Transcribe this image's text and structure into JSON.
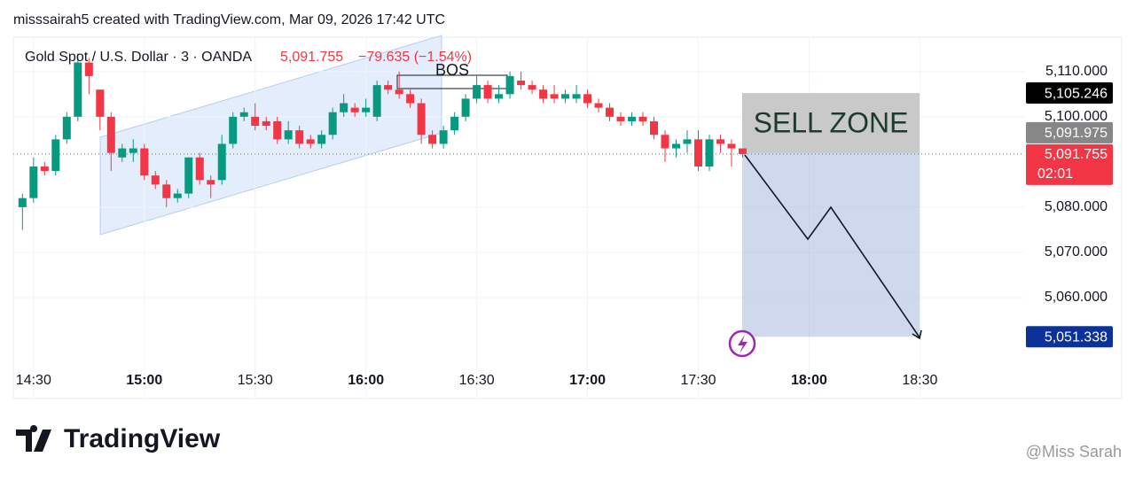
{
  "header": {
    "attribution": "misssairah5 created with TradingView.com, Mar 09, 2026 17:42 UTC"
  },
  "chart_data": {
    "type": "candlestick",
    "title": "Gold Spot / U.S. Dollar · 3 · OANDA",
    "last_price": "5,091.755",
    "change": "−79.635 (−1.54%)",
    "x": [
      "14:27",
      "14:30",
      "14:33",
      "14:36",
      "14:39",
      "14:42",
      "14:45",
      "14:48",
      "14:51",
      "14:54",
      "14:57",
      "15:00",
      "15:03",
      "15:06",
      "15:09",
      "15:12",
      "15:15",
      "15:18",
      "15:21",
      "15:24",
      "15:27",
      "15:30",
      "15:33",
      "15:36",
      "15:39",
      "15:42",
      "15:45",
      "15:48",
      "15:51",
      "15:54",
      "15:57",
      "16:00",
      "16:03",
      "16:06",
      "16:09",
      "16:12",
      "16:15",
      "16:18",
      "16:21",
      "16:24",
      "16:27",
      "16:30",
      "16:33",
      "16:36",
      "16:39",
      "16:42",
      "16:45",
      "16:48",
      "16:51",
      "16:54",
      "16:57",
      "17:00",
      "17:03",
      "17:06",
      "17:09",
      "17:12",
      "17:15",
      "17:18",
      "17:21",
      "17:24",
      "17:27",
      "17:30",
      "17:33",
      "17:36",
      "17:39",
      "17:42"
    ],
    "open": [
      5080,
      5082,
      5089,
      5088,
      5095,
      5100,
      5112,
      5106,
      5100,
      5091,
      5092,
      5093,
      5087,
      5085,
      5082,
      5083,
      5091,
      5086,
      5086,
      5094,
      5100,
      5100,
      5099,
      5099,
      5095,
      5097,
      5095,
      5094,
      5096,
      5101,
      5102,
      5101,
      5100,
      5107,
      5106,
      5105,
      5103,
      5096,
      5094,
      5097,
      5100,
      5104,
      5107,
      5104,
      5105,
      5108,
      5107,
      5106,
      5105,
      5104,
      5104,
      5105,
      5103,
      5102,
      5100,
      5099,
      5100,
      5099,
      5096,
      5093,
      5094,
      5095,
      5089,
      5095,
      5094,
      5093
    ],
    "high": [
      5083,
      5091,
      5090,
      5096,
      5101,
      5114,
      5113,
      5106,
      5101,
      5094,
      5095,
      5094,
      5088,
      5086,
      5084,
      5091,
      5092,
      5087,
      5096,
      5101,
      5102,
      5103,
      5100,
      5100,
      5099,
      5098,
      5096,
      5097,
      5102,
      5105,
      5103,
      5104,
      5108,
      5108,
      5110,
      5106,
      5104,
      5097,
      5098,
      5101,
      5105,
      5109,
      5108,
      5107,
      5110,
      5110,
      5108,
      5107,
      5107,
      5106,
      5107,
      5106,
      5104,
      5103,
      5101,
      5101,
      5101,
      5100,
      5097,
      5095,
      5097,
      5097,
      5096,
      5096,
      5095,
      5093
    ],
    "low": [
      5075,
      5081,
      5087,
      5087,
      5094,
      5099,
      5105,
      5097,
      5088,
      5090,
      5090,
      5086,
      5084,
      5080,
      5081,
      5082,
      5085,
      5082,
      5085,
      5093,
      5099,
      5097,
      5097,
      5094,
      5094,
      5093,
      5093,
      5093,
      5095,
      5100,
      5100,
      5100,
      5099,
      5105,
      5104,
      5102,
      5094,
      5093,
      5093,
      5096,
      5099,
      5103,
      5103,
      5103,
      5104,
      5106,
      5105,
      5103,
      5103,
      5103,
      5103,
      5102,
      5101,
      5099,
      5098,
      5098,
      5098,
      5095,
      5090,
      5091,
      5092,
      5088,
      5088,
      5092,
      5089,
      5091
    ],
    "close": [
      5082,
      5089,
      5088,
      5095,
      5100,
      5112,
      5109,
      5100,
      5092,
      5093,
      5093,
      5087,
      5085,
      5082,
      5083,
      5091,
      5086,
      5085,
      5094,
      5100,
      5101,
      5098,
      5098,
      5095,
      5097,
      5094,
      5094,
      5096,
      5101,
      5103,
      5101,
      5102,
      5107,
      5106,
      5105,
      5103,
      5096,
      5094,
      5097,
      5100,
      5104,
      5107,
      5104,
      5105,
      5109,
      5107,
      5106,
      5104,
      5104,
      5105,
      5105,
      5103,
      5102,
      5100,
      5099,
      5100,
      5099,
      5096,
      5093,
      5094,
      5095,
      5089,
      5095,
      5094,
      5093,
      5091.755
    ],
    "up_color": "#089981",
    "down_color": "#f23645",
    "xlim": [
      "14:25",
      "18:58"
    ],
    "xticks": [
      "14:30",
      "15:00",
      "15:30",
      "16:00",
      "16:30",
      "17:00",
      "17:30",
      "18:00",
      "18:30"
    ],
    "ylim": [
      5045.5,
      5117.6
    ],
    "yticks": [
      {
        "value": 5060,
        "label": "5,060.000"
      },
      {
        "value": 5070,
        "label": "5,070.000"
      },
      {
        "value": 5080,
        "label": "5,080.000"
      },
      {
        "value": 5100,
        "label": "5,100.000"
      },
      {
        "value": 5110,
        "label": "5,110.000"
      }
    ],
    "price_labels": [
      {
        "value": 5105.246,
        "label": "5,105.246",
        "color": "#000000"
      },
      {
        "value": 5091.975,
        "label": "5,091.975",
        "color": "#878787"
      },
      {
        "value": 5091.755,
        "label": "5,091.755",
        "color": "#f23645",
        "countdown": "02:01"
      },
      {
        "value": 5051.338,
        "label": "5,051.338",
        "color": "#0c3299"
      }
    ],
    "annotations": {
      "bos": "BOS",
      "zone": "SELL ZONE"
    }
  },
  "footer": {
    "logo": "TradingView",
    "watermark": "@Miss Sarah"
  }
}
